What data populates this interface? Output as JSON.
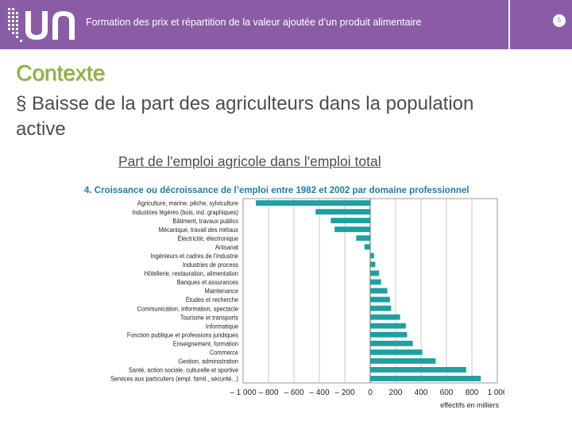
{
  "header": {
    "title": "Formation des prix et répartition de la valeur ajoutée d’un produit alimentaire",
    "page_number": "5",
    "bg_color": "#8a5ca6"
  },
  "slide": {
    "section_title": "Contexte",
    "bullet_marker": "§",
    "bullet_text": "Baisse de la part des agriculteurs dans la population active",
    "chart_caption": "Part de l'emploi agricole dans l'emploi total"
  },
  "chart_data": {
    "type": "bar",
    "orientation": "horizontal",
    "title": "4. Croissance ou décroissance de l’emploi entre 1982 et 2002 par domaine professionnel",
    "xlabel": "effectifs en milliers",
    "xlim": [
      -1000,
      1000
    ],
    "xticks": [
      -1000,
      -800,
      -600,
      -400,
      -200,
      0,
      200,
      400,
      600,
      800,
      1000
    ],
    "xtick_labels": [
      "– 1 000",
      "– 800",
      "– 600",
      "– 400",
      "– 200",
      "0",
      "200",
      "400",
      "600",
      "800",
      "1 000"
    ],
    "grid": true,
    "bar_color": "#1f9fa0",
    "title_color": "#1d7fa0",
    "categories": [
      "Agriculture, marine, pêche, sylviculture",
      "Industries légères (bois, ind. graphiques)",
      "Bâtiment, travaux publics",
      "Mécanique, travail des métaux",
      "Électricité, électronique",
      "Artisanat",
      "Ingénieurs et cadres de l’industrie",
      "Industries de process",
      "Hôtellerie, restauration, alimentation",
      "Banques et assurances",
      "Maintenance",
      "Études et recherche",
      "Communication, information, spectacle",
      "Tourisme et transports",
      "Informatique",
      "Fonction publique et professions juridiques",
      "Enseignement, formation",
      "Commerce",
      "Gestion, administration",
      "Santé, action sociale, culturelle et sportive",
      "Services aux particuliers (empl. famil., sécurité...)"
    ],
    "values": [
      -900,
      -430,
      -310,
      -280,
      -110,
      -45,
      30,
      40,
      70,
      85,
      135,
      155,
      165,
      235,
      280,
      290,
      335,
      410,
      515,
      755,
      870
    ]
  }
}
